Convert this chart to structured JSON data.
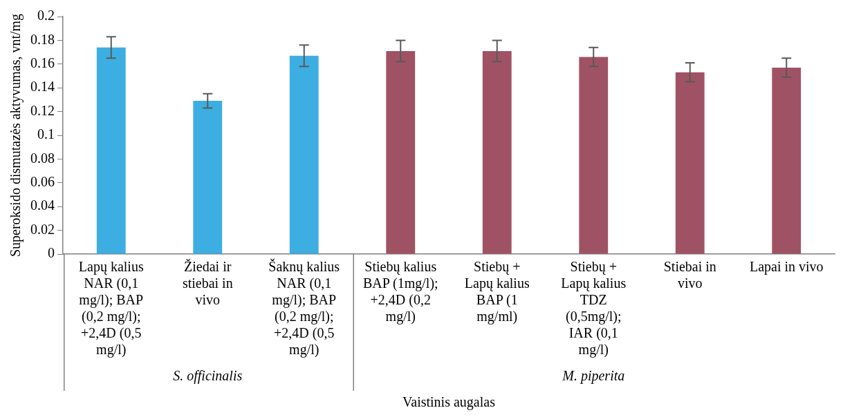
{
  "chart_data": {
    "type": "bar",
    "xlabel": "Vaistinis augalas",
    "ylabel": "Superoksido dismutazės aktyvumas, vnt/mg",
    "categories": [
      "Lapų kalius NAR (0,1 mg/l); BAP (0,2 mg/l); +2,4D (0,5 mg/l)",
      "Žiedai ir stiebai in vivo",
      "Šaknų kalius NAR (0,1 mg/l); BAP (0,2 mg/l); +2,4D (0,5 mg/l)",
      "Stiebų kalius BAP (1mg/l); +2,4D (0,2 mg/l)",
      "Stiebų + Lapų kalius BAP (1 mg/ml)",
      "Stiebų + Lapų kalius TDZ (0,5mg/l); IAR (0,1 mg/l)",
      "Stiebai in vivo",
      "Lapai in vivo"
    ],
    "series": [
      {
        "color": "#3daee2",
        "values": [
          0.174,
          0.129,
          0.167,
          null,
          null,
          null,
          null,
          null
        ],
        "errors": [
          0.009,
          0.006,
          0.009,
          null,
          null,
          null,
          null,
          null
        ]
      },
      {
        "color": "#a05265",
        "values": [
          null,
          null,
          null,
          0.171,
          0.171,
          0.166,
          0.153,
          0.157
        ],
        "errors": [
          null,
          null,
          null,
          0.009,
          0.009,
          0.008,
          0.008,
          0.008
        ]
      }
    ],
    "ylim": [
      0,
      0.2
    ],
    "yticks": [
      0,
      0.02,
      0.04,
      0.06,
      0.08,
      0.1,
      0.12,
      0.14,
      0.16,
      0.18,
      0.2
    ],
    "annotations": [
      "S. officinalis",
      "M. piperita"
    ],
    "grid": false,
    "legend": false
  }
}
